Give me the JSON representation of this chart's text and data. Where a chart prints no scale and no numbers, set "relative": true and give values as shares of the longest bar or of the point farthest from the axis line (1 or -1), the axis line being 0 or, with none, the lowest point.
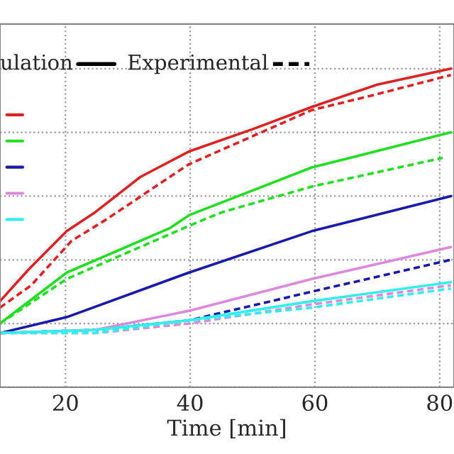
{
  "chart_data": {
    "type": "line",
    "xlabel": "Time [min]",
    "relative": true,
    "xlim": [
      9.5,
      82.3
    ],
    "xticks": [
      20,
      40,
      60,
      80
    ],
    "grid": true,
    "annotations": [
      "ulation",
      "Experimental"
    ],
    "series": [
      {
        "color": "#dd2222",
        "line_style": "solid",
        "x": [
          9.5,
          14.1,
          20.2,
          24.8,
          32,
          39.8,
          50,
          59.5,
          70,
          81.8
        ],
        "values": [
          0.27,
          0.37,
          0.49,
          0.55,
          0.66,
          0.74,
          0.81,
          0.88,
          0.95,
          1.0
        ]
      },
      {
        "color": "#dd2222",
        "line_style": "dashed",
        "x": [
          9.5,
          14.5,
          21,
          26,
          39.8,
          59.5,
          70,
          81.8
        ],
        "values": [
          0.25,
          0.32,
          0.46,
          0.52,
          0.7,
          0.87,
          0.92,
          0.98
        ]
      },
      {
        "color": "#22dd22",
        "line_style": "solid",
        "x": [
          9.5,
          20.2,
          36.8,
          39.8,
          59.5,
          81.8
        ],
        "values": [
          0.2,
          0.36,
          0.5,
          0.54,
          0.69,
          0.8
        ]
      },
      {
        "color": "#22dd22",
        "line_style": "dashed",
        "x": [
          9.5,
          20.2,
          41.4,
          45.2,
          59.5,
          80.5
        ],
        "values": [
          0.2,
          0.34,
          0.52,
          0.55,
          0.63,
          0.72
        ]
      },
      {
        "color": "#1a1aaa",
        "line_style": "solid",
        "x": [
          9.5,
          20.2,
          39.8,
          59.5,
          81.8
        ],
        "values": [
          0.17,
          0.22,
          0.36,
          0.49,
          0.6
        ]
      },
      {
        "color": "#1a1aaa",
        "line_style": "dashed",
        "x": [
          9.5,
          24.8,
          39.8,
          59.5,
          81.8
        ],
        "values": [
          0.17,
          0.18,
          0.21,
          0.3,
          0.4
        ]
      },
      {
        "color": "#dd88dd",
        "line_style": "solid",
        "x": [
          9.5,
          24.8,
          39.8,
          59.5,
          81.8
        ],
        "values": [
          0.17,
          0.18,
          0.24,
          0.34,
          0.44
        ]
      },
      {
        "color": "#dd88dd",
        "line_style": "dashed",
        "x": [
          9.5,
          24.8,
          39.8,
          59.5,
          81.8
        ],
        "values": [
          0.17,
          0.17,
          0.2,
          0.26,
          0.32
        ]
      },
      {
        "color": "#33eeee",
        "line_style": "solid",
        "x": [
          9.5,
          24.8,
          39.8,
          59.5,
          81.8
        ],
        "values": [
          0.17,
          0.18,
          0.21,
          0.27,
          0.33
        ]
      },
      {
        "color": "#33eeee",
        "line_style": "dashed",
        "x": [
          9.5,
          24.8,
          39.8,
          59.5,
          81.8
        ],
        "values": [
          0.17,
          0.17,
          0.21,
          0.25,
          0.31
        ]
      }
    ]
  }
}
